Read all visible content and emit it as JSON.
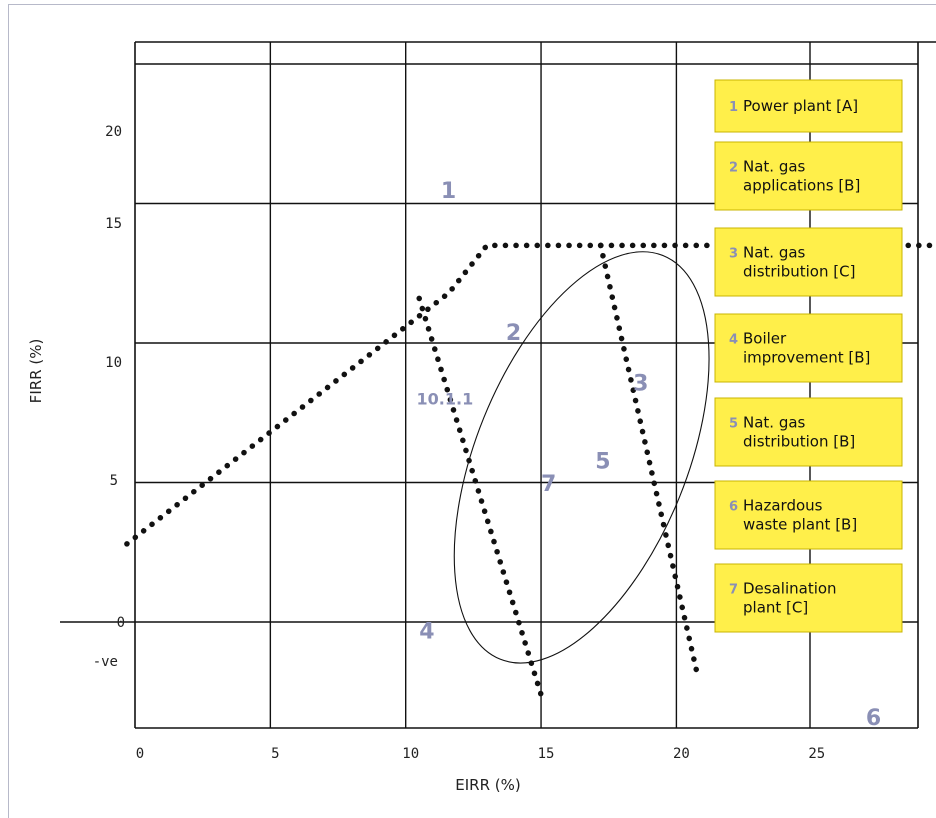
{
  "chart_data": {
    "type": "scatter",
    "title": "",
    "xlabel": "EIRR (%)",
    "ylabel": "FIRR (%)",
    "xlim": [
      0,
      29
    ],
    "ylim": [
      -4.5,
      23.5
    ],
    "x_ticks": [
      "0",
      "5",
      "10",
      "15",
      "20",
      "25"
    ],
    "y_ticks": [
      "20",
      "15",
      "10",
      "5",
      "0",
      "-ve"
    ],
    "grid": true,
    "legend_placement": "right",
    "legend": [
      {
        "num": "1",
        "lines": [
          "Power plant [A]"
        ]
      },
      {
        "num": "2",
        "lines": [
          "Nat. gas",
          "applications [B]"
        ]
      },
      {
        "num": "3",
        "lines": [
          "Nat. gas",
          "distribution [C]"
        ]
      },
      {
        "num": "4",
        "lines": [
          "Boiler",
          "improvement [B]"
        ]
      },
      {
        "num": "5",
        "lines": [
          "Nat. gas",
          "distribution [B]"
        ]
      },
      {
        "num": "6",
        "lines": [
          "Hazardous",
          "waste plant [B]"
        ]
      },
      {
        "num": "7",
        "lines": [
          "Desalination",
          "plant [C]"
        ]
      }
    ],
    "points": [
      {
        "label": "1",
        "x": 11.3,
        "y": 15.2
      },
      {
        "label": "2",
        "x": 13.7,
        "y": 10.1
      },
      {
        "label": "3",
        "x": 18.4,
        "y": 8.3
      },
      {
        "label": "4",
        "x": 10.5,
        "y": -0.6
      },
      {
        "label": "5",
        "x": 17.0,
        "y": 5.5
      },
      {
        "label": "6",
        "x": 27.0,
        "y": -3.7
      },
      {
        "label": "7",
        "x": 15.0,
        "y": 4.7
      }
    ],
    "annotation": "10.1.1",
    "ellipse": {
      "cx": 16.5,
      "cy": 5.9,
      "rx": 3.9,
      "ry": 7.8
    },
    "dotted_curves": [
      [
        [
          -0.3,
          2.8
        ],
        [
          11.6,
          11.8
        ],
        [
          13.0,
          13.5
        ],
        [
          29.6,
          13.5
        ]
      ],
      [
        [
          10.5,
          11.6
        ],
        [
          15.0,
          -2.6
        ]
      ],
      [
        [
          17.2,
          13.5
        ],
        [
          20.8,
          -2.0
        ]
      ]
    ]
  }
}
